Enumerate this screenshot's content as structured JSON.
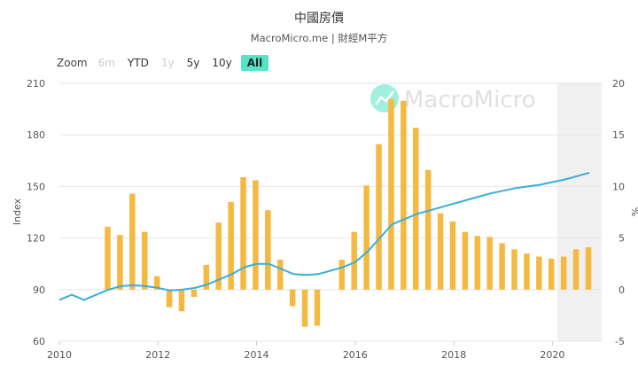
{
  "title": "中國房價",
  "subtitle": "MacroMicro.me | 財經M平方",
  "watermark": "MacroMicro",
  "zoom": {
    "label": "Zoom",
    "buttons": [
      {
        "label": "6m",
        "state": "disabled"
      },
      {
        "label": "YTD",
        "state": "normal"
      },
      {
        "label": "1y",
        "state": "disabled"
      },
      {
        "label": "5y",
        "state": "normal"
      },
      {
        "label": "10y",
        "state": "normal"
      },
      {
        "label": "All",
        "state": "active"
      }
    ]
  },
  "colors": {
    "bar": "#f5b942",
    "line": "#3aaed8",
    "grid": "#e6e6e6",
    "forecast_band": "#f0f0f0",
    "zoom_active": "#55e5c5",
    "watermark": "#c8c8c8"
  },
  "chart_data": {
    "type": "bar+line",
    "xlim": [
      2010,
      2021
    ],
    "x_ticks": [
      2010,
      2012,
      2014,
      2016,
      2018,
      2020
    ],
    "shaded_from": 2020.1,
    "left_axis": {
      "label": "Index",
      "range": [
        60,
        210
      ],
      "ticks": [
        60,
        90,
        120,
        150,
        180,
        210
      ]
    },
    "right_axis": {
      "label": "%",
      "range": [
        -5,
        20
      ],
      "ticks": [
        -5,
        0,
        5,
        10,
        15,
        20
      ]
    },
    "bar_series": {
      "axis": "right",
      "points": [
        {
          "x": 2010.98,
          "y": 6.1
        },
        {
          "x": 2011.23,
          "y": 5.3
        },
        {
          "x": 2011.48,
          "y": 9.3
        },
        {
          "x": 2011.73,
          "y": 5.6
        },
        {
          "x": 2011.98,
          "y": 1.3
        },
        {
          "x": 2012.23,
          "y": -1.7
        },
        {
          "x": 2012.48,
          "y": -2.1
        },
        {
          "x": 2012.73,
          "y": -0.7
        },
        {
          "x": 2012.98,
          "y": 2.4
        },
        {
          "x": 2013.23,
          "y": 6.5
        },
        {
          "x": 2013.48,
          "y": 8.5
        },
        {
          "x": 2013.73,
          "y": 10.9
        },
        {
          "x": 2013.98,
          "y": 10.6
        },
        {
          "x": 2014.23,
          "y": 7.7
        },
        {
          "x": 2014.48,
          "y": 2.9
        },
        {
          "x": 2014.73,
          "y": -1.6
        },
        {
          "x": 2014.98,
          "y": -3.6
        },
        {
          "x": 2015.23,
          "y": -3.5
        },
        {
          "x": 2015.73,
          "y": 2.9
        },
        {
          "x": 2015.98,
          "y": 5.6
        },
        {
          "x": 2016.23,
          "y": 10.1
        },
        {
          "x": 2016.48,
          "y": 14.1
        },
        {
          "x": 2016.73,
          "y": 18.5
        },
        {
          "x": 2016.98,
          "y": 18.3
        },
        {
          "x": 2017.23,
          "y": 15.7
        },
        {
          "x": 2017.48,
          "y": 11.6
        },
        {
          "x": 2017.73,
          "y": 7.4
        },
        {
          "x": 2017.98,
          "y": 6.6
        },
        {
          "x": 2018.23,
          "y": 5.6
        },
        {
          "x": 2018.48,
          "y": 5.2
        },
        {
          "x": 2018.73,
          "y": 5.1
        },
        {
          "x": 2018.98,
          "y": 4.5
        },
        {
          "x": 2019.23,
          "y": 3.9
        },
        {
          "x": 2019.48,
          "y": 3.5
        },
        {
          "x": 2019.73,
          "y": 3.2
        },
        {
          "x": 2019.98,
          "y": 3.0
        },
        {
          "x": 2020.23,
          "y": 3.2
        },
        {
          "x": 2020.48,
          "y": 3.9
        },
        {
          "x": 2020.73,
          "y": 4.1
        }
      ]
    },
    "line_series": {
      "axis": "left",
      "points": [
        {
          "x": 2010.0,
          "y": 84
        },
        {
          "x": 2010.25,
          "y": 87
        },
        {
          "x": 2010.5,
          "y": 84
        },
        {
          "x": 2010.75,
          "y": 87
        },
        {
          "x": 2011.0,
          "y": 90
        },
        {
          "x": 2011.25,
          "y": 92
        },
        {
          "x": 2011.5,
          "y": 92.5
        },
        {
          "x": 2011.75,
          "y": 92
        },
        {
          "x": 2012.0,
          "y": 91
        },
        {
          "x": 2012.25,
          "y": 89.5
        },
        {
          "x": 2012.5,
          "y": 90
        },
        {
          "x": 2012.75,
          "y": 91
        },
        {
          "x": 2013.0,
          "y": 93
        },
        {
          "x": 2013.25,
          "y": 96
        },
        {
          "x": 2013.5,
          "y": 99
        },
        {
          "x": 2013.75,
          "y": 103
        },
        {
          "x": 2014.0,
          "y": 105
        },
        {
          "x": 2014.25,
          "y": 105
        },
        {
          "x": 2014.5,
          "y": 102
        },
        {
          "x": 2014.75,
          "y": 99
        },
        {
          "x": 2015.0,
          "y": 98.5
        },
        {
          "x": 2015.25,
          "y": 99
        },
        {
          "x": 2015.5,
          "y": 101
        },
        {
          "x": 2015.75,
          "y": 103
        },
        {
          "x": 2016.0,
          "y": 106
        },
        {
          "x": 2016.25,
          "y": 112
        },
        {
          "x": 2016.5,
          "y": 120
        },
        {
          "x": 2016.75,
          "y": 128
        },
        {
          "x": 2017.0,
          "y": 131
        },
        {
          "x": 2017.25,
          "y": 134
        },
        {
          "x": 2017.5,
          "y": 136
        },
        {
          "x": 2017.75,
          "y": 138
        },
        {
          "x": 2018.0,
          "y": 140
        },
        {
          "x": 2018.25,
          "y": 142
        },
        {
          "x": 2018.5,
          "y": 144
        },
        {
          "x": 2018.75,
          "y": 146
        },
        {
          "x": 2019.0,
          "y": 147.5
        },
        {
          "x": 2019.25,
          "y": 149
        },
        {
          "x": 2019.5,
          "y": 150
        },
        {
          "x": 2019.75,
          "y": 151
        },
        {
          "x": 2020.0,
          "y": 152.5
        },
        {
          "x": 2020.25,
          "y": 154
        },
        {
          "x": 2020.5,
          "y": 156
        },
        {
          "x": 2020.75,
          "y": 158
        }
      ]
    }
  }
}
